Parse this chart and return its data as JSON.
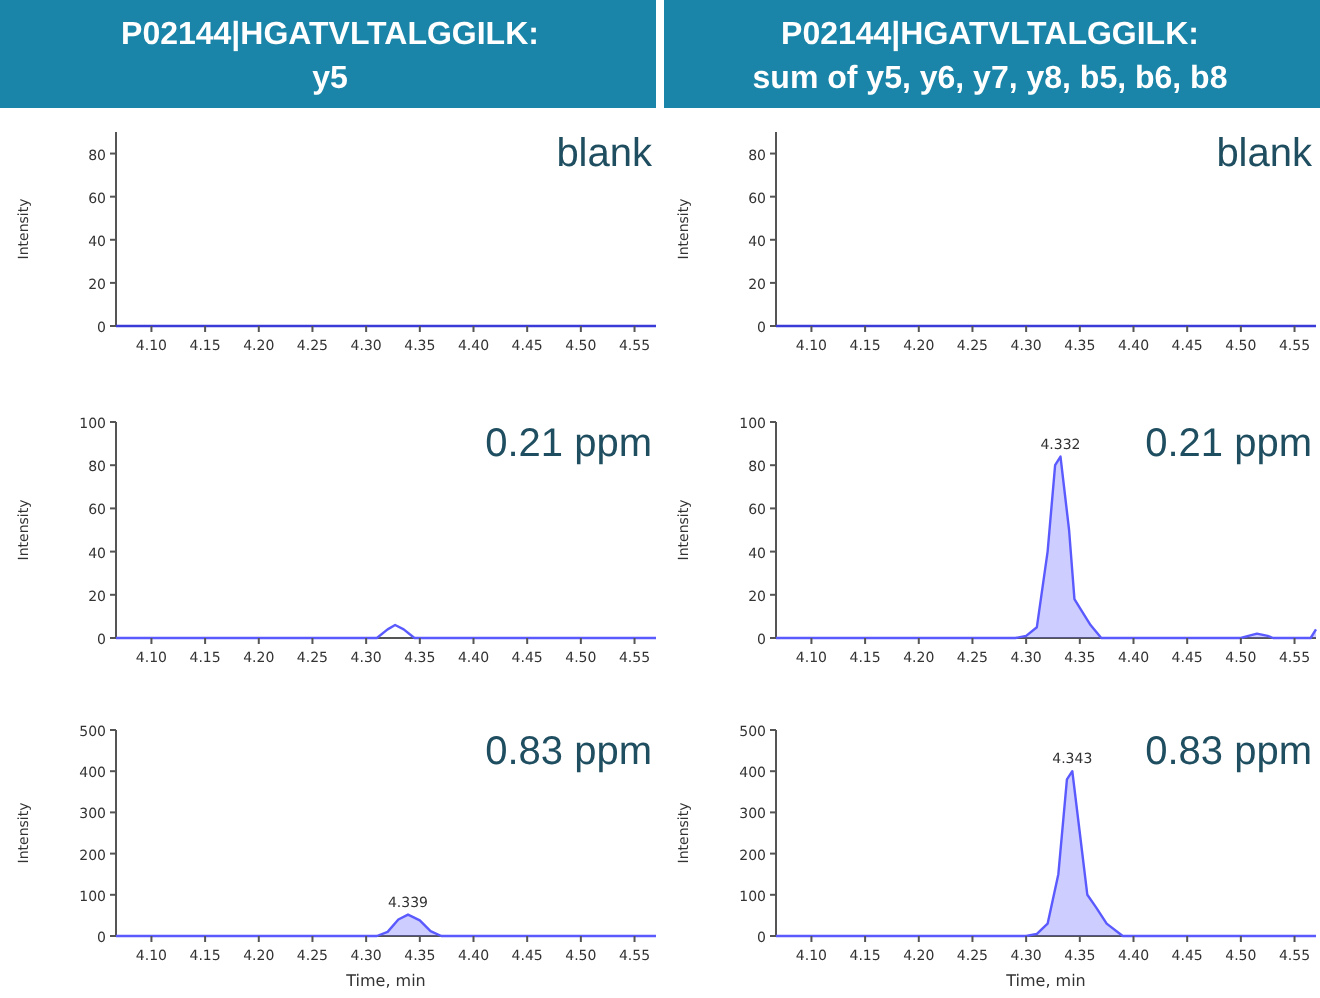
{
  "chart_data": [
    {
      "type": "area",
      "title": "P02144|HGATVLTALGGILK: y5",
      "subtitle": "blank",
      "ylabel": "Intensity",
      "xlim": [
        4.067,
        4.57
      ],
      "xticks": [
        {
          "value": 4.1,
          "label": "4.10"
        },
        4.15,
        {
          "value": 4.2,
          "label": "4.20"
        },
        4.25,
        {
          "value": 4.3,
          "label": "4.30"
        },
        4.35,
        {
          "value": 4.4,
          "label": "4.40"
        },
        4.45,
        {
          "value": 4.5,
          "label": "4.50"
        },
        4.55
      ],
      "ylim": [
        0,
        90
      ],
      "yticks": [
        0,
        20,
        40,
        60,
        80
      ],
      "series": [
        {
          "type": "line",
          "color": "#3a3ad8",
          "x": [
            4.067,
            4.57
          ],
          "values": [
            0,
            0
          ]
        }
      ]
    },
    {
      "type": "area",
      "title": "P02144|HGATVLTALGGILK: sum of y5, y6, y7, y8, b5, b6, b8",
      "subtitle": "blank",
      "ylabel": "Intensity",
      "xlim": [
        4.067,
        4.57
      ],
      "xticks": [
        {
          "value": 4.1,
          "label": "4.10"
        },
        4.15,
        {
          "value": 4.2,
          "label": "4.20"
        },
        4.25,
        {
          "value": 4.3,
          "label": "4.30"
        },
        4.35,
        {
          "value": 4.4,
          "label": "4.40"
        },
        4.45,
        {
          "value": 4.5,
          "label": "4.50"
        },
        4.55
      ],
      "ylim": [
        0,
        90
      ],
      "yticks": [
        0,
        20,
        40,
        60,
        80
      ],
      "series": [
        {
          "type": "line",
          "color": "#3a3ad8",
          "x": [
            4.067,
            4.57
          ],
          "values": [
            0,
            0
          ]
        }
      ]
    },
    {
      "type": "area",
      "subtitle": "0.21 ppm",
      "ylabel": "Intensity",
      "xlim": [
        4.067,
        4.57
      ],
      "xticks": [
        {
          "value": 4.1,
          "label": "4.10"
        },
        4.15,
        {
          "value": 4.2,
          "label": "4.20"
        },
        4.25,
        {
          "value": 4.3,
          "label": "4.30"
        },
        4.35,
        {
          "value": 4.4,
          "label": "4.40"
        },
        4.45,
        {
          "value": 4.5,
          "label": "4.50"
        },
        4.55
      ],
      "ylim": [
        0,
        100
      ],
      "yticks": [
        0,
        20,
        40,
        60,
        80,
        100
      ],
      "series": [
        {
          "type": "line",
          "color": "#5a5aff",
          "x": [
            4.067,
            4.31,
            4.32,
            4.327,
            4.335,
            4.345,
            4.57
          ],
          "values": [
            0,
            0,
            4,
            6,
            4,
            0,
            0
          ]
        }
      ]
    },
    {
      "type": "area",
      "subtitle": "0.21 ppm",
      "ylabel": "Intensity",
      "xlim": [
        4.067,
        4.57
      ],
      "xticks": [
        {
          "value": 4.1,
          "label": "4.10"
        },
        4.15,
        {
          "value": 4.2,
          "label": "4.20"
        },
        4.25,
        {
          "value": 4.3,
          "label": "4.30"
        },
        4.35,
        {
          "value": 4.4,
          "label": "4.40"
        },
        4.45,
        {
          "value": 4.5,
          "label": "4.50"
        },
        4.55
      ],
      "ylim": [
        0,
        100
      ],
      "yticks": [
        0,
        20,
        40,
        60,
        80,
        100
      ],
      "series": [
        {
          "type": "area",
          "color": "#5a5aff",
          "x": [
            4.067,
            4.29,
            4.3,
            4.31,
            4.32,
            4.327,
            4.332,
            4.34,
            4.345,
            4.35,
            4.36,
            4.37,
            4.5,
            4.507,
            4.515,
            4.525,
            4.53,
            4.565,
            4.57
          ],
          "values": [
            0,
            0,
            1,
            5,
            40,
            80,
            84,
            50,
            18,
            14,
            6,
            0,
            0,
            1,
            2,
            1,
            0,
            0,
            4
          ]
        }
      ],
      "annotations": [
        {
          "text": "4.332",
          "x": 4.332,
          "y": 84
        }
      ]
    },
    {
      "type": "area",
      "subtitle": "0.83 ppm",
      "xlabel": "Time, min",
      "ylabel": "Intensity",
      "xlim": [
        4.067,
        4.57
      ],
      "xticks": [
        {
          "value": 4.1,
          "label": "4.10"
        },
        4.15,
        {
          "value": 4.2,
          "label": "4.20"
        },
        4.25,
        {
          "value": 4.3,
          "label": "4.30"
        },
        4.35,
        {
          "value": 4.4,
          "label": "4.40"
        },
        4.45,
        {
          "value": 4.5,
          "label": "4.50"
        },
        4.55
      ],
      "ylim": [
        0,
        500
      ],
      "yticks": [
        0,
        100,
        200,
        300,
        400,
        500
      ],
      "series": [
        {
          "type": "area",
          "color": "#5a5aff",
          "x": [
            4.067,
            4.31,
            4.32,
            4.33,
            4.339,
            4.35,
            4.36,
            4.37,
            4.57
          ],
          "values": [
            0,
            0,
            10,
            40,
            52,
            38,
            12,
            0,
            0
          ]
        }
      ],
      "annotations": [
        {
          "text": "4.339",
          "x": 4.339,
          "y": 52
        }
      ]
    },
    {
      "type": "area",
      "subtitle": "0.83 ppm",
      "xlabel": "Time, min",
      "ylabel": "Intensity",
      "xlim": [
        4.067,
        4.57
      ],
      "xticks": [
        {
          "value": 4.1,
          "label": "4.10"
        },
        4.15,
        {
          "value": 4.2,
          "label": "4.20"
        },
        4.25,
        {
          "value": 4.3,
          "label": "4.30"
        },
        4.35,
        {
          "value": 4.4,
          "label": "4.40"
        },
        4.45,
        {
          "value": 4.5,
          "label": "4.50"
        },
        4.55
      ],
      "ylim": [
        0,
        500
      ],
      "yticks": [
        0,
        100,
        200,
        300,
        400,
        500
      ],
      "series": [
        {
          "type": "area",
          "color": "#5a5aff",
          "x": [
            4.067,
            4.3,
            4.31,
            4.32,
            4.33,
            4.338,
            4.343,
            4.35,
            4.357,
            4.365,
            4.375,
            4.39,
            4.57
          ],
          "values": [
            0,
            0,
            5,
            30,
            150,
            380,
            400,
            250,
            100,
            70,
            30,
            0,
            0
          ]
        }
      ],
      "annotations": [
        {
          "text": "4.343",
          "x": 4.343,
          "y": 400
        }
      ]
    }
  ]
}
